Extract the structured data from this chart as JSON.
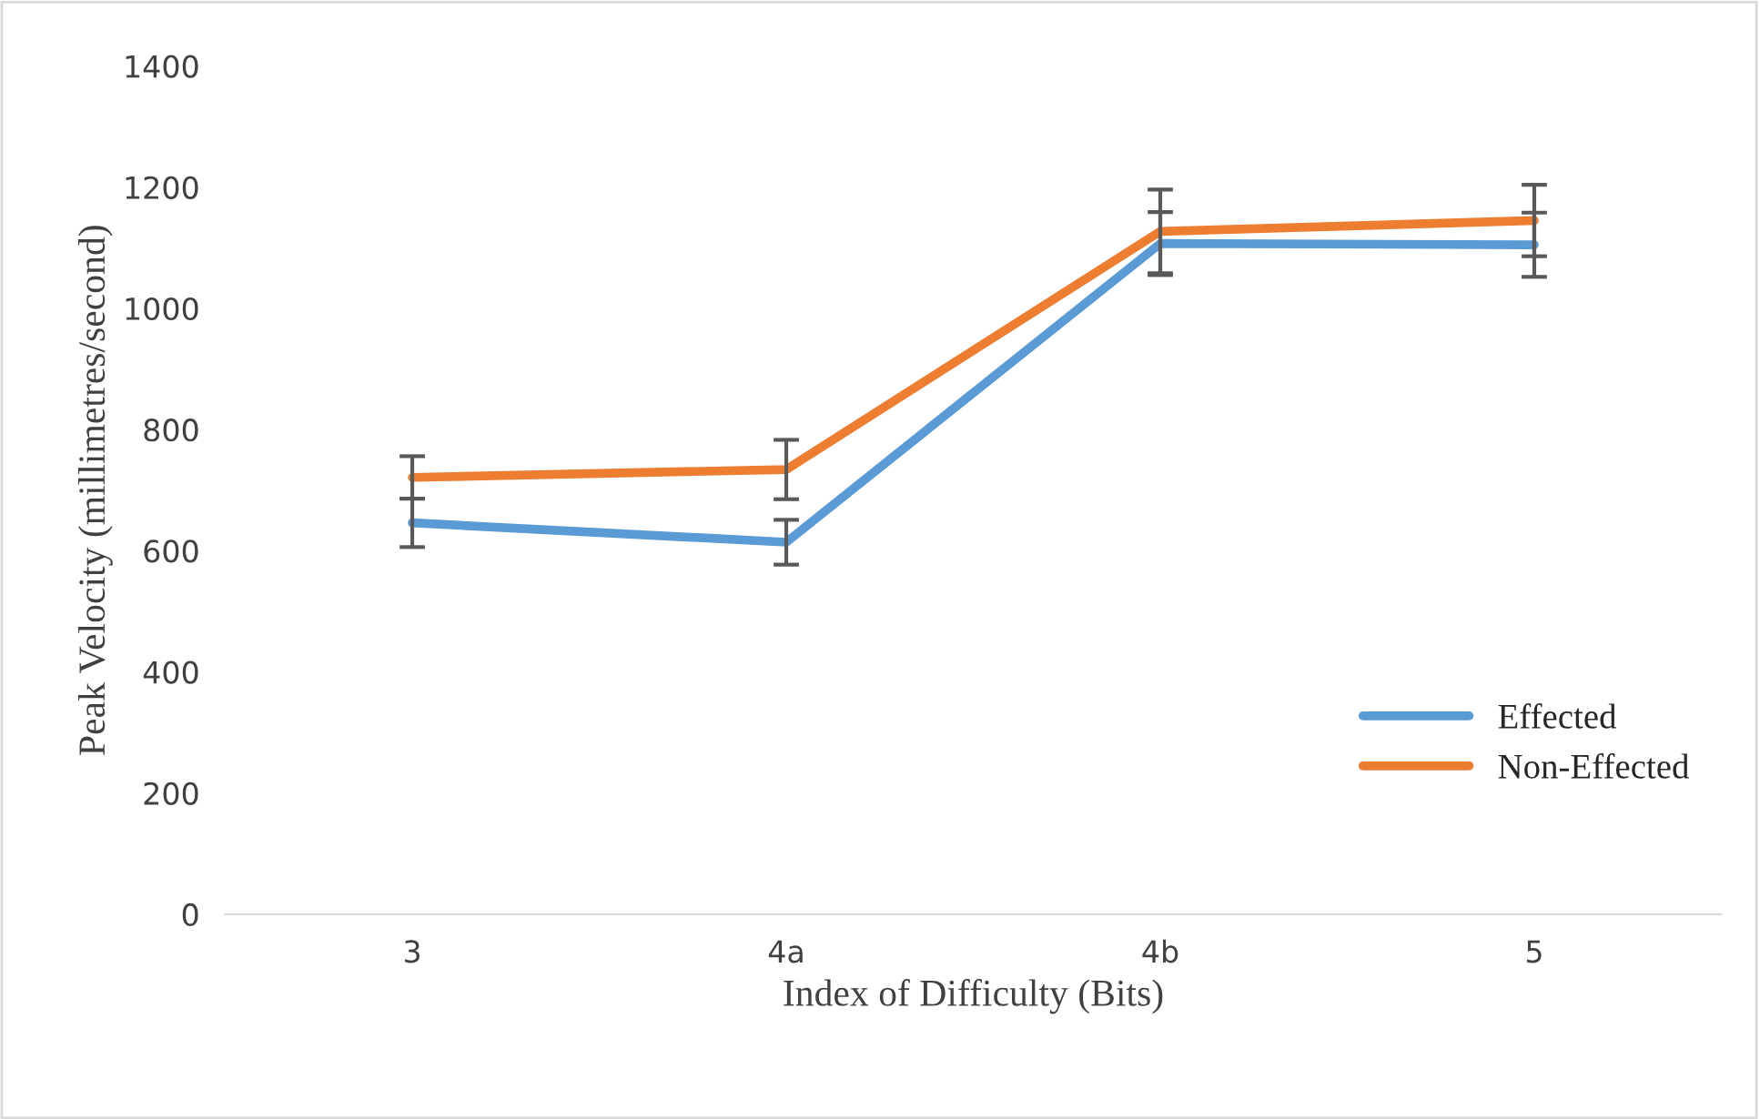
{
  "chart_data": {
    "type": "line",
    "xlabel": "Index of Difficulty (Bits)",
    "ylabel": "Peak Velocity (millimetres/second)",
    "categories": [
      "3",
      "4a",
      "4b",
      "5"
    ],
    "series": [
      {
        "name": "Effected",
        "color": "#5b9bd5",
        "values": [
          646,
          614,
          1107,
          1105
        ],
        "errors": [
          40,
          37,
          52,
          53
        ]
      },
      {
        "name": "Non-Effected",
        "color": "#ed7d31",
        "values": [
          721,
          734,
          1127,
          1145
        ],
        "errors": [
          35,
          49,
          69,
          59
        ]
      }
    ],
    "ylim": [
      0,
      1400
    ],
    "yticks": [
      0,
      200,
      400,
      600,
      800,
      1000,
      1200,
      1400
    ],
    "grid": false,
    "legend": "right",
    "marker": "none",
    "line_style": "solid"
  }
}
